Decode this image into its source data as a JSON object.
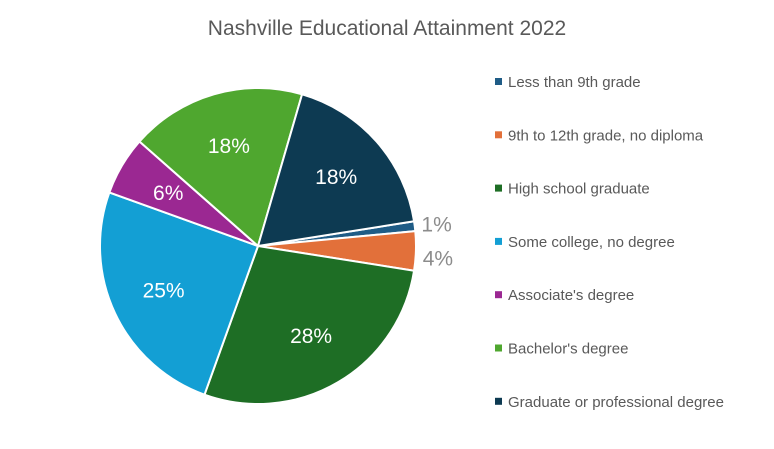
{
  "chart_data": {
    "type": "pie",
    "title": "Nashville Educational Attainment 2022",
    "categories": [
      "Less than 9th grade",
      "9th to 12th grade, no diploma",
      "High school graduate",
      "Some college, no degree",
      "Associate's degree",
      "Bachelor's degree",
      "Graduate or professional degree"
    ],
    "values": [
      1,
      4,
      28,
      25,
      6,
      18,
      18
    ],
    "data_labels": [
      "1%",
      "4%",
      "28%",
      "25%",
      "6%",
      "18%",
      "18%"
    ],
    "colors": [
      "#1f5c86",
      "#e2703a",
      "#1e6e25",
      "#139fd4",
      "#9b2892",
      "#4fa72f",
      "#0d3a52"
    ],
    "legend_position": "right"
  }
}
